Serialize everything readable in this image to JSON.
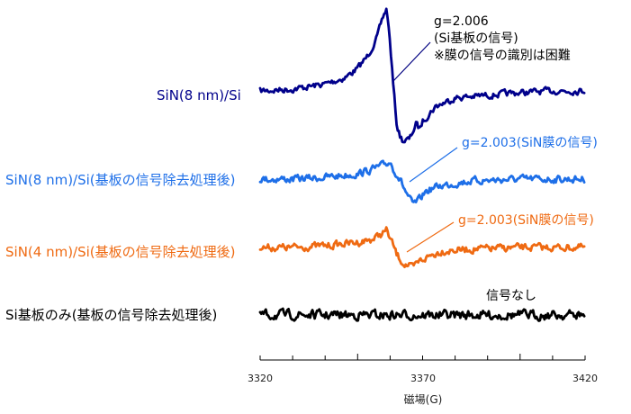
{
  "chart_data": {
    "type": "line",
    "xlabel": "磁場(G)",
    "xlim": [
      3320,
      3420
    ],
    "x_ticks": [
      "3320",
      "3370",
      "3420"
    ],
    "series": [
      {
        "name": "SiN(8 nm)/Si",
        "color": "#00008b",
        "x": [
          3320,
          3330,
          3340,
          3346,
          3350,
          3353,
          3356,
          3358,
          3359,
          3360,
          3361,
          3362,
          3363,
          3364,
          3366,
          3368,
          3369,
          3370,
          3374,
          3380,
          3390,
          3400,
          3410,
          3420
        ],
        "y": [
          0.0,
          0.02,
          0.08,
          0.15,
          0.26,
          0.4,
          0.62,
          0.88,
          0.95,
          0.55,
          0.05,
          -0.38,
          -0.52,
          -0.58,
          -0.56,
          -0.38,
          -0.44,
          -0.35,
          -0.18,
          -0.08,
          -0.05,
          -0.02,
          0.0,
          0.0
        ]
      },
      {
        "name": "SiN(8 nm)/Si(基板の信号除去処理後)",
        "color": "#1e6fe8",
        "x": [
          3320,
          3330,
          3340,
          3350,
          3355,
          3358,
          3360,
          3361,
          3363,
          3365,
          3367,
          3369,
          3371,
          3375,
          3385,
          3400,
          3420
        ],
        "y": [
          0.0,
          0.0,
          0.02,
          0.06,
          0.12,
          0.16,
          0.2,
          0.12,
          0.0,
          -0.16,
          -0.3,
          -0.24,
          -0.14,
          -0.08,
          -0.02,
          0.0,
          0.0
        ]
      },
      {
        "name": "SiN(4 nm)/Si(基板の信号除去処理後)",
        "color": "#ef6a12",
        "x": [
          3320,
          3330,
          3340,
          3350,
          3355,
          3359,
          3360,
          3361,
          3362,
          3364,
          3367,
          3369,
          3372,
          3376,
          3385,
          3400,
          3420
        ],
        "y": [
          0.0,
          0.0,
          0.02,
          0.06,
          0.1,
          0.2,
          0.1,
          0.02,
          -0.08,
          -0.18,
          -0.24,
          -0.16,
          -0.1,
          -0.04,
          -0.02,
          0.0,
          0.0
        ]
      },
      {
        "name": "Si基板のみ(基板の信号除去処理後)",
        "color": "#000000",
        "x": [
          3320,
          3370,
          3420
        ],
        "y": [
          0.0,
          0.0,
          0.0
        ]
      }
    ],
    "annotations": [
      {
        "lines": [
          "g=2.006",
          "(Si基板の信号)",
          "※膜の信号の識別は困難"
        ],
        "color": "#000000"
      },
      {
        "lines": [
          "g=2.003(SiN膜の信号)"
        ],
        "color": "#1e6fe8"
      },
      {
        "lines": [
          "g=2.003(SiN膜の信号)"
        ],
        "color": "#ef6a12"
      },
      {
        "lines": [
          "信号なし"
        ],
        "color": "#000000"
      }
    ]
  }
}
